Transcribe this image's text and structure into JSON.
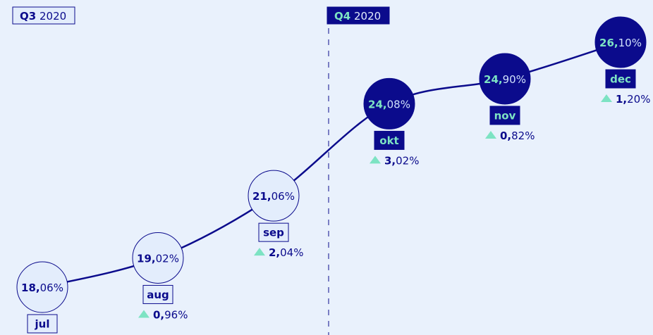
{
  "chart_data": {
    "type": "line",
    "periods": [
      {
        "quarter": "Q3",
        "year": "2020"
      },
      {
        "quarter": "Q4",
        "year": "2020"
      }
    ],
    "categories": [
      "jul",
      "aug",
      "sep",
      "okt",
      "nov",
      "dec"
    ],
    "values": [
      18.06,
      19.02,
      21.06,
      24.08,
      24.9,
      26.1
    ],
    "value_labels": [
      "18,06%",
      "19,02%",
      "21,06%",
      "24,08%",
      "24,90%",
      "26,10%"
    ],
    "changes": [
      null,
      0.96,
      2.04,
      3.02,
      0.82,
      1.2
    ],
    "change_labels": [
      null,
      "0,96%",
      "2,04%",
      "3,02%",
      "0,82%",
      "1,20%"
    ],
    "color": "#0b0b8c"
  }
}
